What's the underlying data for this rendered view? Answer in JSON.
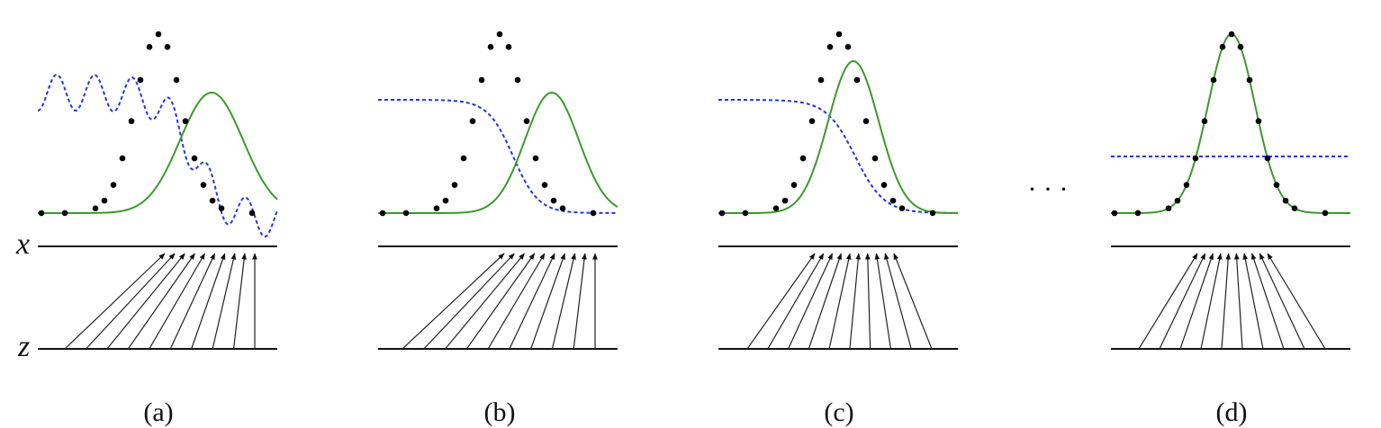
{
  "axis_labels": {
    "x": "x",
    "z": "z"
  },
  "panels": [
    {
      "label": "(a)"
    },
    {
      "label": "(b)"
    },
    {
      "label": "(c)"
    },
    {
      "label": "(d)"
    }
  ],
  "ellipsis": "· · ·"
}
